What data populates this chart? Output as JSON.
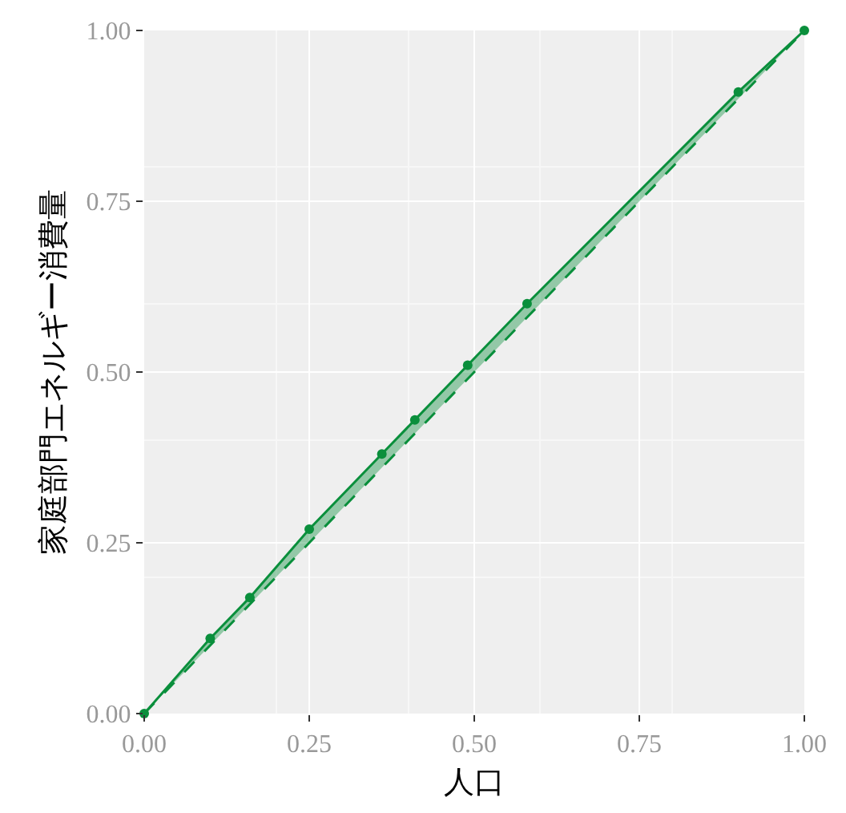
{
  "chart_data": {
    "type": "line",
    "xlabel": "人口",
    "ylabel": "家庭部門エネルギー消費量",
    "xlim": [
      0,
      1
    ],
    "ylim": [
      0,
      1
    ],
    "xticks": [
      {
        "value": 0,
        "label": "0.00"
      },
      0.25,
      {
        "value": 0.5,
        "label": "0.50"
      },
      0.75,
      {
        "value": 1,
        "label": "1.00"
      }
    ],
    "yticks": [
      {
        "value": 0,
        "label": "0.00"
      },
      0.25,
      {
        "value": 0.5,
        "label": "0.50"
      },
      0.75,
      {
        "value": 1,
        "label": "1.00"
      }
    ],
    "grid": true,
    "series": [
      {
        "color": "#0a8f3c",
        "marker": "circle",
        "line_style": "solid",
        "x": [
          0,
          0.1,
          0.16,
          0.25,
          0.36,
          0.41,
          0.49,
          0.58,
          0.9,
          1.0
        ],
        "values": [
          0,
          0.11,
          0.17,
          0.27,
          0.38,
          0.43,
          0.51,
          0.6,
          0.91,
          1.0
        ],
        "lower": [
          0,
          0.1,
          0.16,
          0.25,
          0.36,
          0.41,
          0.49,
          0.58,
          0.9,
          1.0
        ],
        "upper": [
          0,
          0.11,
          0.17,
          0.27,
          0.38,
          0.43,
          0.51,
          0.6,
          0.91,
          1.0
        ]
      },
      {
        "color": "#0a8f3c",
        "marker": "none",
        "line_style": "dashed",
        "x": [
          0,
          1.0
        ],
        "values": [
          0,
          1.0
        ]
      }
    ]
  }
}
